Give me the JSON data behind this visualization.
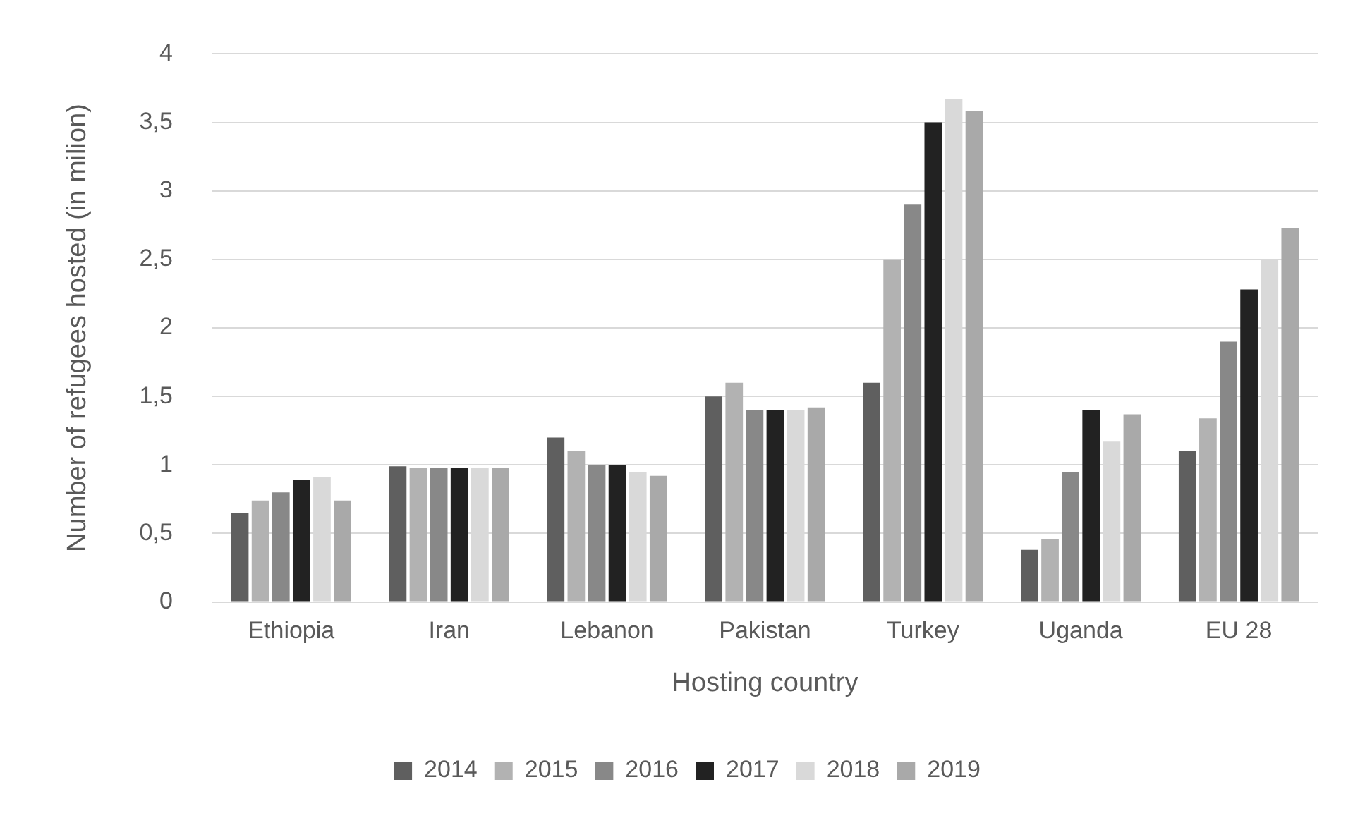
{
  "chart_data": {
    "type": "bar",
    "xlabel": "Hosting country",
    "ylabel": "Number of refugees hosted (in milion)",
    "categories": [
      "Ethiopia",
      "Iran",
      "Lebanon",
      "Pakistan",
      "Turkey",
      "Uganda",
      "EU 28"
    ],
    "series": [
      {
        "name": "2014",
        "color": "#5f5f5f",
        "values": [
          0.65,
          0.99,
          1.2,
          1.5,
          1.6,
          0.38,
          1.1
        ]
      },
      {
        "name": "2015",
        "color": "#b2b2b2",
        "values": [
          0.74,
          0.98,
          1.1,
          1.6,
          2.5,
          0.46,
          1.34
        ]
      },
      {
        "name": "2016",
        "color": "#888888",
        "values": [
          0.8,
          0.98,
          1.0,
          1.4,
          2.9,
          0.95,
          1.9
        ]
      },
      {
        "name": "2017",
        "color": "#222222",
        "values": [
          0.89,
          0.98,
          1.0,
          1.4,
          3.5,
          1.4,
          2.28
        ]
      },
      {
        "name": "2018",
        "color": "#d9d9d9",
        "values": [
          0.91,
          0.98,
          0.95,
          1.4,
          3.67,
          1.17,
          2.5
        ]
      },
      {
        "name": "2019",
        "color": "#a9a9a9",
        "values": [
          0.74,
          0.98,
          0.92,
          1.42,
          3.58,
          1.37,
          2.73
        ]
      }
    ],
    "ylim": [
      0,
      4
    ],
    "yticks": [
      0,
      {
        "value": 0.5,
        "label": "0,5"
      },
      1,
      {
        "value": 1.5,
        "label": "1,5"
      },
      2,
      {
        "value": 2.5,
        "label": "2,5"
      },
      3,
      {
        "value": 3.5,
        "label": "3,5"
      },
      4
    ],
    "grid": "y",
    "legend": "bottom"
  }
}
